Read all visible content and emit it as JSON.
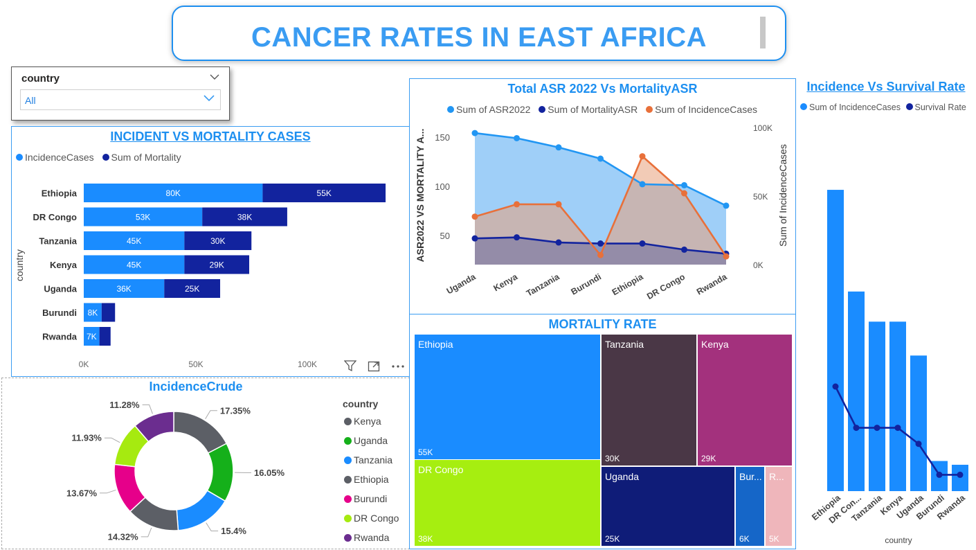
{
  "header": {
    "title": "CANCER RATES IN EAST AFRICA"
  },
  "slicer": {
    "label": "country",
    "value": "All"
  },
  "incident_chart": {
    "title": "INCIDENT VS MORTALITY CASES",
    "legend": [
      {
        "name": "IncidenceCases",
        "color": "#1a8cff"
      },
      {
        "name": "Sum of Mortality",
        "color": "#12239e"
      }
    ],
    "ylabel": "country",
    "xticks": [
      "0K",
      "50K",
      "100K"
    ],
    "icons": {
      "filter": "filter-icon",
      "focus": "focus-mode-icon",
      "more": "more-options-icon"
    }
  },
  "asr_chart": {
    "title": "Total ASR 2022 Vs MortalityASR",
    "legend": [
      {
        "name": "Sum of ASR2022",
        "color": "#2196f3"
      },
      {
        "name": "Sum of MortalityASR",
        "color": "#12239e"
      },
      {
        "name": "Sum of IncidenceCases",
        "color": "#e8703a"
      }
    ],
    "ylabel_left": "ASR2022 VS MORTALITY A...",
    "ylabel_right": "Sum of IncidenceCases",
    "yticks_left": [
      "150",
      "100",
      "50"
    ],
    "yticks_right": [
      "100K",
      "50K",
      "0K"
    ]
  },
  "survival_chart": {
    "title": "Incidence Vs Survival Rate",
    "legend": [
      {
        "name": "Sum of IncidenceCases",
        "color": "#1a8cff"
      },
      {
        "name": "Survival Rate",
        "color": "#12239e"
      }
    ],
    "xlabel": "country",
    "xticks": [
      "Ethiopia",
      "DR Con...",
      "Tanzania",
      "Kenya",
      "Uganda",
      "Burundi",
      "Rwanda"
    ]
  },
  "donut_chart": {
    "title": "IncidenceCrude",
    "legend_title": "country",
    "slices": [
      {
        "name": "Kenya",
        "label": "17.35%",
        "color": "#5c5f66"
      },
      {
        "name": "Uganda",
        "label": "16.05%",
        "color": "#15b01a"
      },
      {
        "name": "Tanzania",
        "label": "15.4%",
        "color": "#1a8cff"
      },
      {
        "name": "Ethiopia",
        "label": "14.32%",
        "color": "#5c5f66"
      },
      {
        "name": "Burundi",
        "label": "13.67%",
        "color": "#e6008a"
      },
      {
        "name": "DR Congo",
        "label": "11.93%",
        "color": "#a6ea10"
      },
      {
        "name": "Rwanda",
        "label": "11.28%",
        "color": "#6b2d8f"
      }
    ]
  },
  "treemap": {
    "title": "MORTALITY RATE",
    "cells": [
      {
        "name": "Ethiopia",
        "value": "55K",
        "color": "#1a8cff"
      },
      {
        "name": "DR Congo",
        "value": "38K",
        "color": "#a6ee10"
      },
      {
        "name": "Tanzania",
        "value": "30K",
        "color": "#4a3746"
      },
      {
        "name": "Kenya",
        "value": "29K",
        "color": "#a3317d"
      },
      {
        "name": "Uganda",
        "value": "25K",
        "color": "#0f1c78"
      },
      {
        "name": "Bur...",
        "value": "6K",
        "color": "#1566c8"
      },
      {
        "name": "R...",
        "value": "5K",
        "color": "#efb6bb"
      }
    ]
  },
  "chart_data": [
    {
      "type": "bar",
      "title": "INCIDENT VS MORTALITY CASES",
      "orientation": "horizontal-stacked",
      "categories": [
        "Ethiopia",
        "DR Congo",
        "Tanzania",
        "Kenya",
        "Uganda",
        "Burundi",
        "Rwanda"
      ],
      "series": [
        {
          "name": "IncidenceCases",
          "values": [
            80000,
            53000,
            45000,
            45000,
            36000,
            8000,
            7000
          ],
          "labels": [
            "80K",
            "53K",
            "45K",
            "45K",
            "36K",
            "8K",
            "7K"
          ]
        },
        {
          "name": "Sum of Mortality",
          "values": [
            55000,
            38000,
            30000,
            29000,
            25000,
            6000,
            5000
          ],
          "labels": [
            "55K",
            "38K",
            "30K",
            "29K",
            "25K",
            "",
            ""
          ]
        }
      ],
      "xlabel": "",
      "ylabel": "country",
      "xlim": [
        0,
        140000
      ]
    },
    {
      "type": "area",
      "title": "Total ASR 2022 Vs MortalityASR",
      "categories": [
        "Uganda",
        "Kenya",
        "Tanzania",
        "Burundi",
        "Ethiopia",
        "DR Congo",
        "Rwanda"
      ],
      "series": [
        {
          "name": "Sum of ASR2022",
          "axis": "left",
          "values": [
            154,
            149,
            140,
            129,
            104,
            103,
            83
          ]
        },
        {
          "name": "Sum of MortalityASR",
          "axis": "left",
          "values": [
            51,
            52,
            47,
            46,
            46,
            40,
            36
          ]
        },
        {
          "name": "Sum of IncidenceCases",
          "axis": "right",
          "values": [
            36000,
            45000,
            45000,
            8000,
            80000,
            53000,
            7000
          ]
        }
      ],
      "ylim": [
        20,
        165
      ],
      "ylim_right": [
        0,
        100000
      ]
    },
    {
      "type": "bar",
      "title": "Incidence Vs Survival Rate",
      "categories": [
        "Ethiopia",
        "DR Con...",
        "Tanzania",
        "Kenya",
        "Uganda",
        "Burundi",
        "Rwanda"
      ],
      "series": [
        {
          "name": "Sum of IncidenceCases",
          "type": "bar",
          "values": [
            80000,
            53000,
            45000,
            45000,
            36000,
            8000,
            7000
          ]
        },
        {
          "name": "Survival Rate",
          "type": "line",
          "values": [
            0.42,
            0.24,
            0.24,
            0.24,
            0.17,
            0.035,
            0.035
          ]
        }
      ],
      "ylim": [
        0,
        87000
      ],
      "ylim_line": [
        0,
        0.42
      ]
    },
    {
      "type": "pie",
      "title": "IncidenceCrude",
      "categories": [
        "Kenya",
        "Uganda",
        "Tanzania",
        "Ethiopia",
        "Burundi",
        "DR Congo",
        "Rwanda"
      ],
      "values": [
        17.35,
        16.05,
        15.4,
        14.32,
        13.67,
        11.93,
        11.28
      ]
    }
  ]
}
